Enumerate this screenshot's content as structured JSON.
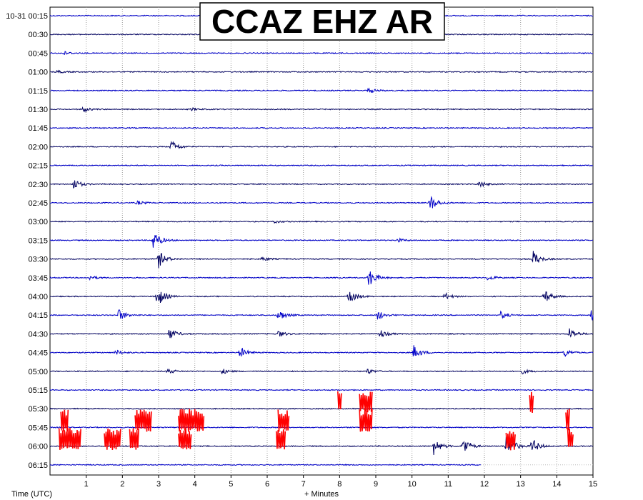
{
  "chart_data": {
    "type": "line",
    "title": "CCAZ EHZ AR",
    "xlabel": "+ Minutes",
    "ylabel": "Time (UTC)",
    "xlim": [
      0,
      15
    ],
    "x_ticks": [
      "1",
      "2",
      "3",
      "4",
      "5",
      "6",
      "7",
      "8",
      "9",
      "10",
      "11",
      "12",
      "13",
      "14",
      "15"
    ],
    "grid": true,
    "row_labels": [
      "10-31 00:15",
      "00:30",
      "00:45",
      "01:00",
      "01:15",
      "01:30",
      "01:45",
      "02:00",
      "02:15",
      "02:30",
      "02:45",
      "03:00",
      "03:15",
      "03:30",
      "03:45",
      "04:00",
      "04:15",
      "04:30",
      "04:45",
      "05:00",
      "05:15",
      "05:30",
      "05:45",
      "06:00",
      "06:15"
    ],
    "trace_colors": [
      "#0000c8",
      "#000060"
    ],
    "clip_color": "#ff0000",
    "rows": [
      {
        "time": "00:15",
        "events": []
      },
      {
        "time": "00:30",
        "events": []
      },
      {
        "time": "00:45",
        "events": [
          {
            "t": 0.35,
            "amp": 3
          }
        ]
      },
      {
        "time": "01:00",
        "events": [
          {
            "t": 0.2,
            "amp": 2
          }
        ]
      },
      {
        "time": "01:15",
        "events": [
          {
            "t": 8.8,
            "amp": 4
          }
        ]
      },
      {
        "time": "01:30",
        "events": [
          {
            "t": 0.9,
            "amp": 4
          },
          {
            "t": 3.9,
            "amp": 2
          }
        ]
      },
      {
        "time": "01:45",
        "events": []
      },
      {
        "time": "02:00",
        "events": [
          {
            "t": 3.35,
            "amp": 9
          }
        ]
      },
      {
        "time": "02:15",
        "events": []
      },
      {
        "time": "02:30",
        "events": [
          {
            "t": 0.65,
            "amp": 8
          },
          {
            "t": 11.85,
            "amp": 5
          }
        ]
      },
      {
        "time": "02:45",
        "events": [
          {
            "t": 10.5,
            "amp": 12
          },
          {
            "t": 2.4,
            "amp": 3
          }
        ]
      },
      {
        "time": "03:00",
        "events": [
          {
            "t": 6.2,
            "amp": 2
          }
        ]
      },
      {
        "time": "03:15",
        "events": [
          {
            "t": 2.85,
            "amp": 14
          },
          {
            "t": 9.6,
            "amp": 3
          }
        ]
      },
      {
        "time": "03:30",
        "events": [
          {
            "t": 3.0,
            "amp": 12
          },
          {
            "t": 5.85,
            "amp": 3
          },
          {
            "t": 13.35,
            "amp": 11
          }
        ]
      },
      {
        "time": "03:45",
        "events": [
          {
            "t": 1.1,
            "amp": 3
          },
          {
            "t": 8.8,
            "amp": 14
          },
          {
            "t": 12.1,
            "amp": 4
          }
        ]
      },
      {
        "time": "04:00",
        "events": [
          {
            "t": 2.95,
            "amp": 16
          },
          {
            "t": 8.25,
            "amp": 12
          },
          {
            "t": 10.9,
            "amp": 5
          },
          {
            "t": 13.65,
            "amp": 10
          }
        ]
      },
      {
        "time": "04:15",
        "events": [
          {
            "t": 1.9,
            "amp": 9
          },
          {
            "t": 6.3,
            "amp": 9
          },
          {
            "t": 9.05,
            "amp": 7
          },
          {
            "t": 12.45,
            "amp": 5
          },
          {
            "t": 14.95,
            "amp": 8
          }
        ]
      },
      {
        "time": "04:30",
        "events": [
          {
            "t": 3.3,
            "amp": 8
          },
          {
            "t": 6.3,
            "amp": 5
          },
          {
            "t": 9.1,
            "amp": 7
          },
          {
            "t": 14.35,
            "amp": 8
          }
        ]
      },
      {
        "time": "04:45",
        "events": [
          {
            "t": 1.8,
            "amp": 4
          },
          {
            "t": 5.25,
            "amp": 8
          },
          {
            "t": 10.05,
            "amp": 10
          },
          {
            "t": 14.2,
            "amp": 6
          }
        ]
      },
      {
        "time": "05:00",
        "events": [
          {
            "t": 3.25,
            "amp": 4
          },
          {
            "t": 4.75,
            "amp": 4
          },
          {
            "t": 8.75,
            "amp": 4
          },
          {
            "t": 13.05,
            "amp": 3
          }
        ]
      },
      {
        "time": "05:15",
        "events": []
      },
      {
        "time": "05:30",
        "events": [],
        "clipped": [
          [
            7.95,
            8.05
          ],
          [
            8.55,
            8.9
          ],
          [
            13.25,
            13.35
          ]
        ]
      },
      {
        "time": "05:45",
        "events": [],
        "clipped": [
          [
            0.3,
            0.5
          ],
          [
            2.35,
            2.8
          ],
          [
            3.55,
            4.25
          ],
          [
            6.3,
            6.6
          ],
          [
            8.55,
            8.9
          ],
          [
            14.25,
            14.35
          ]
        ]
      },
      {
        "time": "06:00",
        "events": [
          {
            "t": 10.6,
            "amp": 12
          },
          {
            "t": 11.4,
            "amp": 14
          },
          {
            "t": 12.6,
            "amp": 22
          },
          {
            "t": 13.3,
            "amp": 12
          }
        ],
        "clipped": [
          [
            0.25,
            0.85
          ],
          [
            1.5,
            1.95
          ],
          [
            2.2,
            2.45
          ],
          [
            3.55,
            3.9
          ],
          [
            6.25,
            6.5
          ],
          [
            12.6,
            12.85
          ],
          [
            14.3,
            14.45
          ]
        ]
      },
      {
        "time": "06:15",
        "events": [],
        "end_min": 11.9
      }
    ]
  }
}
